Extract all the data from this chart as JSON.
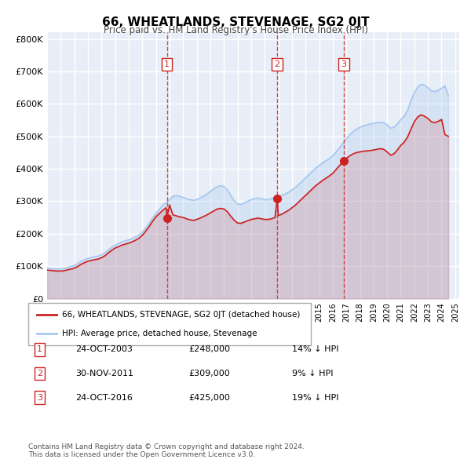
{
  "title": "66, WHEATLANDS, STEVENAGE, SG2 0JT",
  "subtitle": "Price paid vs. HM Land Registry's House Price Index (HPI)",
  "xlabel": "",
  "ylabel": "",
  "bg_color": "#e8eef7",
  "plot_bg": "#e8eef7",
  "grid_color": "#ffffff",
  "red_line_label": "66, WHEATLANDS, STEVENAGE, SG2 0JT (detached house)",
  "blue_line_label": "HPI: Average price, detached house, Stevenage",
  "sale_points": [
    {
      "label": "1",
      "date": "24-OCT-2003",
      "price": 248000,
      "year": 2003.81,
      "pct": "14%",
      "dir": "↓"
    },
    {
      "label": "2",
      "date": "30-NOV-2011",
      "price": 309000,
      "year": 2011.92,
      "pct": "9%",
      "dir": "↓"
    },
    {
      "label": "3",
      "date": "24-OCT-2016",
      "price": 425000,
      "year": 2016.81,
      "pct": "19%",
      "dir": "↓"
    }
  ],
  "footer": "Contains HM Land Registry data © Crown copyright and database right 2024.\nThis data is licensed under the Open Government Licence v3.0.",
  "ylim": [
    0,
    820000
  ],
  "xlim_start": 1995.0,
  "xlim_end": 2025.3,
  "yticks": [
    0,
    100000,
    200000,
    300000,
    400000,
    500000,
    600000,
    700000,
    800000
  ],
  "ytick_labels": [
    "£0",
    "£100K",
    "£200K",
    "£300K",
    "£400K",
    "£500K",
    "£600K",
    "£700K",
    "£800K"
  ],
  "xticks": [
    1995,
    1996,
    1997,
    1998,
    1999,
    2000,
    2001,
    2002,
    2003,
    2004,
    2005,
    2006,
    2007,
    2008,
    2009,
    2010,
    2011,
    2012,
    2013,
    2014,
    2015,
    2016,
    2017,
    2018,
    2019,
    2020,
    2021,
    2022,
    2023,
    2024,
    2025
  ],
  "hpi_data": {
    "years": [
      1995.0,
      1995.25,
      1995.5,
      1995.75,
      1996.0,
      1996.25,
      1996.5,
      1996.75,
      1997.0,
      1997.25,
      1997.5,
      1997.75,
      1998.0,
      1998.25,
      1998.5,
      1998.75,
      1999.0,
      1999.25,
      1999.5,
      1999.75,
      2000.0,
      2000.25,
      2000.5,
      2000.75,
      2001.0,
      2001.25,
      2001.5,
      2001.75,
      2002.0,
      2002.25,
      2002.5,
      2002.75,
      2003.0,
      2003.25,
      2003.5,
      2003.75,
      2004.0,
      2004.25,
      2004.5,
      2004.75,
      2005.0,
      2005.25,
      2005.5,
      2005.75,
      2006.0,
      2006.25,
      2006.5,
      2006.75,
      2007.0,
      2007.25,
      2007.5,
      2007.75,
      2008.0,
      2008.25,
      2008.5,
      2008.75,
      2009.0,
      2009.25,
      2009.5,
      2009.75,
      2010.0,
      2010.25,
      2010.5,
      2010.75,
      2011.0,
      2011.25,
      2011.5,
      2011.75,
      2012.0,
      2012.25,
      2012.5,
      2012.75,
      2013.0,
      2013.25,
      2013.5,
      2013.75,
      2014.0,
      2014.25,
      2014.5,
      2014.75,
      2015.0,
      2015.25,
      2015.5,
      2015.75,
      2016.0,
      2016.25,
      2016.5,
      2016.75,
      2017.0,
      2017.25,
      2017.5,
      2017.75,
      2018.0,
      2018.25,
      2018.5,
      2018.75,
      2019.0,
      2019.25,
      2019.5,
      2019.75,
      2020.0,
      2020.25,
      2020.5,
      2020.75,
      2021.0,
      2021.25,
      2021.5,
      2021.75,
      2022.0,
      2022.25,
      2022.5,
      2022.75,
      2023.0,
      2023.25,
      2023.5,
      2023.75,
      2024.0,
      2024.25,
      2024.5
    ],
    "values": [
      95000,
      93000,
      92000,
      91000,
      92000,
      93000,
      96000,
      99000,
      102000,
      108000,
      115000,
      120000,
      124000,
      127000,
      129000,
      131000,
      135000,
      141000,
      150000,
      158000,
      165000,
      170000,
      175000,
      178000,
      181000,
      185000,
      190000,
      196000,
      205000,
      218000,
      232000,
      248000,
      262000,
      275000,
      288000,
      295000,
      305000,
      315000,
      318000,
      315000,
      312000,
      308000,
      305000,
      303000,
      305000,
      310000,
      316000,
      322000,
      330000,
      338000,
      345000,
      348000,
      345000,
      335000,
      318000,
      302000,
      292000,
      290000,
      295000,
      300000,
      305000,
      308000,
      310000,
      308000,
      305000,
      305000,
      308000,
      312000,
      315000,
      318000,
      322000,
      328000,
      335000,
      342000,
      352000,
      362000,
      372000,
      382000,
      392000,
      402000,
      410000,
      418000,
      425000,
      432000,
      440000,
      452000,
      465000,
      478000,
      492000,
      505000,
      515000,
      522000,
      528000,
      532000,
      535000,
      538000,
      540000,
      542000,
      543000,
      542000,
      535000,
      525000,
      528000,
      538000,
      552000,
      562000,
      580000,
      610000,
      635000,
      652000,
      660000,
      658000,
      650000,
      640000,
      638000,
      642000,
      648000,
      655000,
      625000
    ]
  },
  "red_data": {
    "years": [
      1995.0,
      1995.25,
      1995.5,
      1995.75,
      1996.0,
      1996.25,
      1996.5,
      1996.75,
      1997.0,
      1997.25,
      1997.5,
      1997.75,
      1998.0,
      1998.25,
      1998.5,
      1998.75,
      1999.0,
      1999.25,
      1999.5,
      1999.75,
      2000.0,
      2000.25,
      2000.5,
      2000.75,
      2001.0,
      2001.25,
      2001.5,
      2001.75,
      2002.0,
      2002.25,
      2002.5,
      2002.75,
      2003.0,
      2003.25,
      2003.5,
      2003.75,
      2003.81,
      2004.0,
      2004.25,
      2004.5,
      2004.75,
      2005.0,
      2005.25,
      2005.5,
      2005.75,
      2006.0,
      2006.25,
      2006.5,
      2006.75,
      2007.0,
      2007.25,
      2007.5,
      2007.75,
      2008.0,
      2008.25,
      2008.5,
      2008.75,
      2009.0,
      2009.25,
      2009.5,
      2009.75,
      2010.0,
      2010.25,
      2010.5,
      2010.75,
      2011.0,
      2011.25,
      2011.5,
      2011.75,
      2011.92,
      2012.0,
      2012.25,
      2012.5,
      2012.75,
      2013.0,
      2013.25,
      2013.5,
      2013.75,
      2014.0,
      2014.25,
      2014.5,
      2014.75,
      2015.0,
      2015.25,
      2015.5,
      2015.75,
      2016.0,
      2016.25,
      2016.5,
      2016.75,
      2016.81,
      2017.0,
      2017.25,
      2017.5,
      2017.75,
      2018.0,
      2018.25,
      2018.5,
      2018.75,
      2019.0,
      2019.25,
      2019.5,
      2019.75,
      2020.0,
      2020.25,
      2020.5,
      2020.75,
      2021.0,
      2021.25,
      2021.5,
      2021.75,
      2022.0,
      2022.25,
      2022.5,
      2022.75,
      2023.0,
      2023.25,
      2023.5,
      2023.75,
      2024.0,
      2024.25,
      2024.5
    ],
    "values": [
      88000,
      87000,
      86000,
      85000,
      85000,
      86000,
      89000,
      91000,
      94000,
      99000,
      106000,
      111000,
      115000,
      118000,
      120000,
      122000,
      126000,
      132000,
      141000,
      149000,
      156000,
      160000,
      165000,
      168000,
      171000,
      175000,
      180000,
      186000,
      195000,
      208000,
      222000,
      238000,
      252000,
      262000,
      272000,
      280000,
      248000,
      289000,
      258000,
      255000,
      252000,
      250000,
      246000,
      243000,
      241000,
      244000,
      248000,
      253000,
      258000,
      264000,
      270000,
      276000,
      278000,
      276000,
      268000,
      254000,
      242000,
      233000,
      232000,
      236000,
      240000,
      244000,
      246000,
      248000,
      246000,
      244000,
      244000,
      246000,
      250000,
      309000,
      256000,
      260000,
      266000,
      272000,
      280000,
      288000,
      298000,
      308000,
      318000,
      328000,
      338000,
      348000,
      356000,
      364000,
      371000,
      378000,
      386000,
      398000,
      410000,
      422000,
      425000,
      432000,
      440000,
      446000,
      450000,
      452000,
      454000,
      455000,
      456000,
      458000,
      460000,
      462000,
      460000,
      452000,
      442000,
      446000,
      458000,
      472000,
      482000,
      498000,
      522000,
      545000,
      560000,
      566000,
      562000,
      555000,
      545000,
      542000,
      546000,
      552000,
      505000,
      500000
    ]
  }
}
